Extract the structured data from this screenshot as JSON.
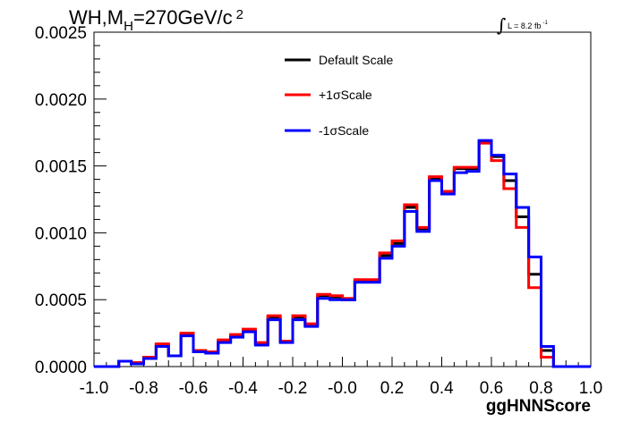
{
  "chart_data": {
    "type": "line",
    "title": {
      "prefix": "WH,M",
      "subscript": "H",
      "main": "=270GeV/c",
      "superscript": "2"
    },
    "annotation": {
      "integral": "∫",
      "text": "L = 8.2 fb",
      "superscript": "-1"
    },
    "xlabel": "ggHNNScore",
    "ylabel": "",
    "xlim": [
      -1.0,
      1.0
    ],
    "ylim": [
      0.0,
      0.0025
    ],
    "x_ticks": [
      "-1.0",
      "-0.8",
      "-0.6",
      "-0.4",
      "-0.2",
      "-0.0",
      "0.2",
      "0.4",
      "0.6",
      "0.8",
      "1.0"
    ],
    "y_ticks": [
      "0.0000",
      "0.0005",
      "0.0010",
      "0.0015",
      "0.0020",
      "0.0025"
    ],
    "bin_edges": [
      -1.0,
      -0.95,
      -0.9,
      -0.85,
      -0.8,
      -0.75,
      -0.7,
      -0.65,
      -0.6,
      -0.55,
      -0.5,
      -0.45,
      -0.4,
      -0.35,
      -0.3,
      -0.25,
      -0.2,
      -0.15,
      -0.1,
      -0.05,
      0.0,
      0.05,
      0.1,
      0.15,
      0.2,
      0.25,
      0.3,
      0.35,
      0.4,
      0.45,
      0.5,
      0.55,
      0.6,
      0.65,
      0.7,
      0.75,
      0.8,
      0.85,
      0.9,
      0.95,
      1.0
    ],
    "legend_position": "top-center",
    "series": [
      {
        "name": "Default Scale",
        "color": "#000000",
        "values": [
          0.0,
          0.0,
          4e-05,
          2e-05,
          7e-05,
          0.00016,
          8e-05,
          0.00024,
          0.00011,
          0.0001,
          0.00019,
          0.00023,
          0.00027,
          0.00017,
          0.00037,
          0.00019,
          0.00037,
          0.00031,
          0.00053,
          0.00052,
          0.0005,
          0.00064,
          0.00064,
          0.00083,
          0.00092,
          0.00119,
          0.00103,
          0.00141,
          0.00131,
          0.00148,
          0.00148,
          0.00168,
          0.00157,
          0.00139,
          0.00112,
          0.00069,
          0.00012,
          0.0,
          0.0,
          0.0
        ]
      },
      {
        "name": "+1σScale",
        "color": "#ff0000",
        "values": [
          0.0,
          0.0,
          4e-05,
          3e-05,
          7e-05,
          0.00017,
          8e-05,
          0.00025,
          0.00012,
          0.00011,
          0.0002,
          0.00024,
          0.00028,
          0.00018,
          0.00038,
          0.00019,
          0.00038,
          0.00032,
          0.00054,
          0.00053,
          0.00051,
          0.00065,
          0.00065,
          0.00085,
          0.00094,
          0.00121,
          0.00104,
          0.00142,
          0.00131,
          0.00149,
          0.00149,
          0.00167,
          0.00154,
          0.00133,
          0.00104,
          0.00059,
          7e-05,
          0.0,
          0.0,
          0.0
        ]
      },
      {
        "name": "-1σScale",
        "color": "#0000ff",
        "values": [
          0.0,
          0.0,
          4e-05,
          2e-05,
          6e-05,
          0.00015,
          8e-05,
          0.00023,
          0.00011,
          0.0001,
          0.00018,
          0.00022,
          0.00026,
          0.00016,
          0.00035,
          0.00018,
          0.00035,
          0.0003,
          0.00051,
          0.0005,
          0.0005,
          0.00063,
          0.00063,
          0.00081,
          0.0009,
          0.00116,
          0.00101,
          0.00139,
          0.00129,
          0.00145,
          0.00146,
          0.00169,
          0.00158,
          0.00144,
          0.00119,
          0.00082,
          0.00015,
          0.0,
          0.0,
          0.0
        ]
      }
    ]
  }
}
